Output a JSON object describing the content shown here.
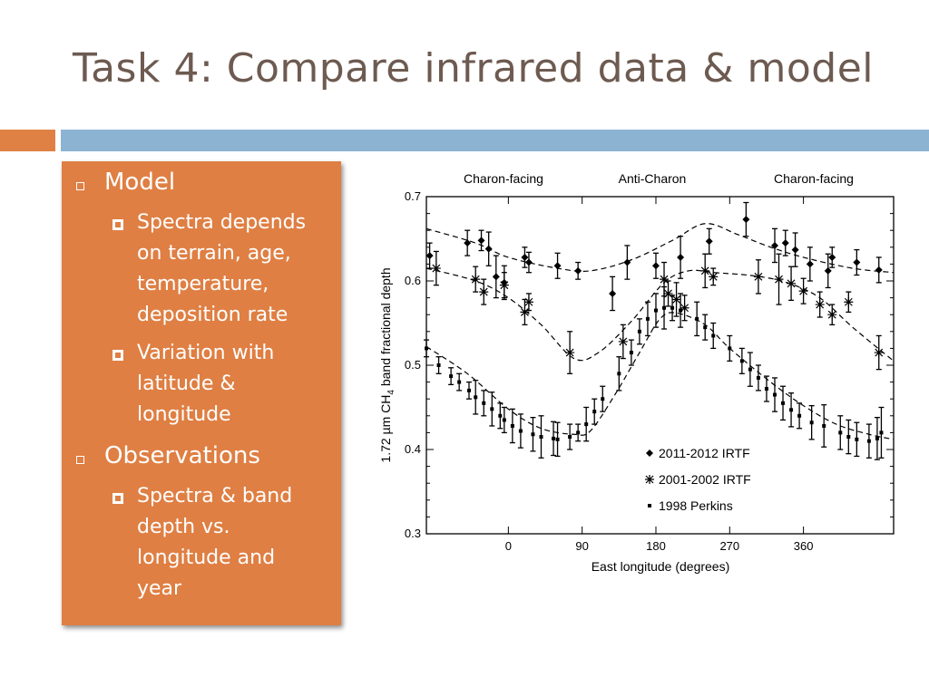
{
  "slide": {
    "title": "Task 4: Compare infrared data & model",
    "colors": {
      "accent_orange": "#df8145",
      "accent_blue": "#8db3d3",
      "title": "#6d5a50",
      "panel": "#df7f43"
    }
  },
  "bullets": [
    {
      "label": "Model",
      "children": [
        {
          "lines": [
            "Spectra depends",
            "on terrain, age,",
            "temperature,",
            "deposition rate"
          ]
        },
        {
          "lines": [
            "Variation with",
            "latitude &",
            "longitude"
          ]
        }
      ]
    },
    {
      "label": "Observations",
      "children": [
        {
          "lines": [
            "Spectra & band",
            "depth vs.",
            "longitude and",
            "year"
          ]
        }
      ]
    }
  ],
  "chart_data": {
    "type": "scatter",
    "top_labels": [
      "Charon-facing",
      "Anti-Charon",
      "Charon-facing"
    ],
    "xlabel": "East longitude (degrees)",
    "ylabel_parts": [
      "1.72 µm CH",
      "4",
      " band fractional depth"
    ],
    "xlim": [
      -100,
      470
    ],
    "ylim": [
      0.3,
      0.7
    ],
    "xticks": [
      0,
      90,
      180,
      270,
      360
    ],
    "yticks": [
      0.3,
      0.4,
      0.5,
      0.6,
      0.7
    ],
    "grid": false,
    "legend_position": "bottom-right",
    "series": [
      {
        "name": "2011-2012 IRTF",
        "marker": "diamond",
        "x": [
          -96,
          -50,
          -33,
          -24,
          -15,
          -5,
          20,
          25,
          60,
          85,
          127,
          145,
          180,
          210,
          245,
          290,
          325,
          338,
          350,
          368,
          390,
          395,
          425,
          452
        ],
        "y": [
          0.63,
          0.645,
          0.648,
          0.638,
          0.605,
          0.598,
          0.628,
          0.622,
          0.618,
          0.612,
          0.585,
          0.622,
          0.618,
          0.628,
          0.647,
          0.673,
          0.642,
          0.645,
          0.637,
          0.62,
          0.612,
          0.628,
          0.622,
          0.613
        ],
        "err": [
          0.015,
          0.015,
          0.012,
          0.02,
          0.025,
          0.02,
          0.012,
          0.012,
          0.015,
          0.01,
          0.02,
          0.02,
          0.015,
          0.025,
          0.015,
          0.02,
          0.02,
          0.015,
          0.02,
          0.02,
          0.02,
          0.012,
          0.015,
          0.015
        ]
      },
      {
        "name": "2001-2002 IRTF",
        "marker": "asterisk",
        "x": [
          -88,
          -40,
          -30,
          -5,
          20,
          25,
          75,
          140,
          190,
          195,
          205,
          215,
          240,
          250,
          305,
          330,
          345,
          360,
          380,
          395,
          415,
          452
        ],
        "y": [
          0.615,
          0.602,
          0.587,
          0.595,
          0.563,
          0.575,
          0.515,
          0.528,
          0.602,
          0.585,
          0.578,
          0.568,
          0.612,
          0.605,
          0.605,
          0.602,
          0.597,
          0.588,
          0.572,
          0.56,
          0.575,
          0.515
        ],
        "err": [
          0.02,
          0.015,
          0.015,
          0.015,
          0.015,
          0.01,
          0.025,
          0.02,
          0.02,
          0.015,
          0.02,
          0.015,
          0.02,
          0.01,
          0.02,
          0.03,
          0.02,
          0.015,
          0.015,
          0.012,
          0.012,
          0.02
        ]
      },
      {
        "name": "1998 Perkins",
        "marker": "square",
        "x": [
          -100,
          -85,
          -70,
          -60,
          -48,
          -40,
          -30,
          -20,
          -10,
          -5,
          5,
          15,
          30,
          40,
          55,
          60,
          75,
          85,
          95,
          105,
          115,
          135,
          150,
          160,
          170,
          180,
          190,
          200,
          210,
          230,
          240,
          250,
          270,
          285,
          295,
          305,
          315,
          325,
          335,
          345,
          355,
          370,
          385,
          405,
          415,
          425,
          440,
          450,
          455
        ],
        "y": [
          0.52,
          0.5,
          0.487,
          0.48,
          0.47,
          0.462,
          0.455,
          0.448,
          0.44,
          0.435,
          0.428,
          0.422,
          0.418,
          0.415,
          0.413,
          0.412,
          0.415,
          0.42,
          0.43,
          0.445,
          0.46,
          0.49,
          0.515,
          0.54,
          0.555,
          0.565,
          0.568,
          0.568,
          0.565,
          0.555,
          0.545,
          0.535,
          0.52,
          0.505,
          0.495,
          0.485,
          0.472,
          0.465,
          0.455,
          0.447,
          0.44,
          0.432,
          0.428,
          0.42,
          0.415,
          0.412,
          0.41,
          0.413,
          0.42
        ],
        "err": [
          0.01,
          0.01,
          0.01,
          0.01,
          0.01,
          0.02,
          0.015,
          0.02,
          0.015,
          0.015,
          0.02,
          0.02,
          0.02,
          0.025,
          0.02,
          0.02,
          0.015,
          0.01,
          0.02,
          0.015,
          0.015,
          0.02,
          0.015,
          0.015,
          0.02,
          0.02,
          0.025,
          0.015,
          0.02,
          0.02,
          0.015,
          0.015,
          0.015,
          0.015,
          0.02,
          0.015,
          0.015,
          0.02,
          0.02,
          0.02,
          0.015,
          0.02,
          0.025,
          0.02,
          0.02,
          0.02,
          0.02,
          0.025,
          0.03
        ]
      }
    ]
  }
}
